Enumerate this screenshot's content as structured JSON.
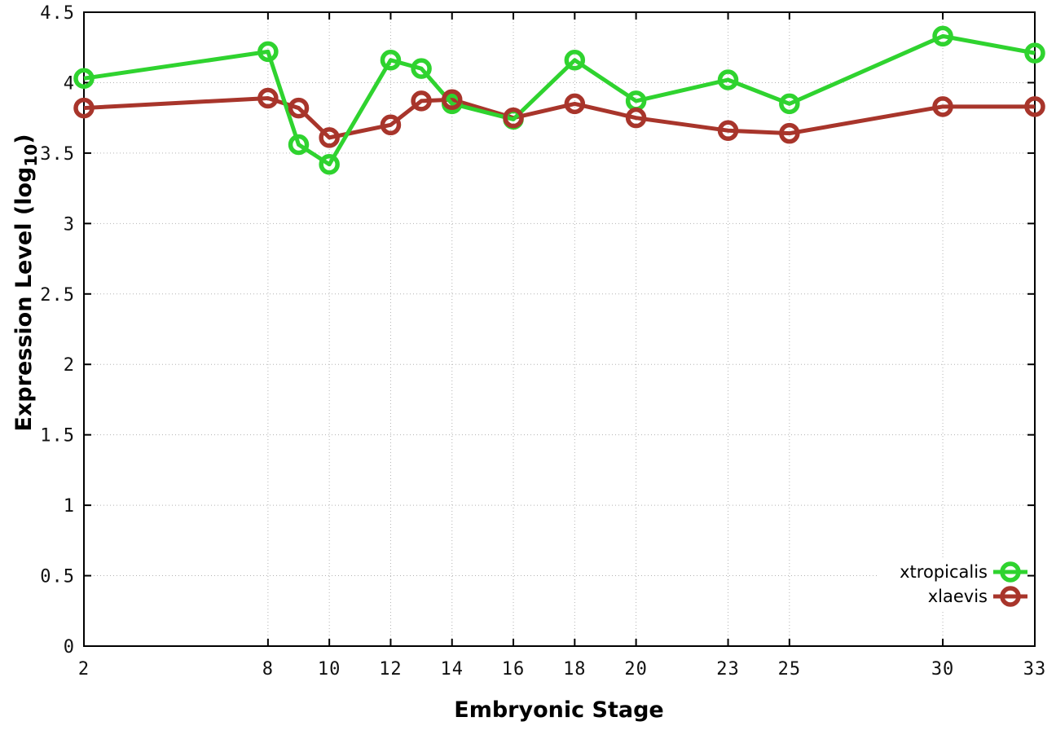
{
  "figure": {
    "background": "#ffffff",
    "grid_color": "#b3b3b3",
    "border_color": "#000000"
  },
  "chart_data": {
    "type": "line",
    "title": "",
    "xlabel": "Embryonic Stage",
    "ylabel": "Expression Level (log10)",
    "ylabel_parts": {
      "prefix": "Expression Level (log",
      "sub": "10",
      "suffix": ")"
    },
    "xlim": [
      2,
      33
    ],
    "ylim": [
      0,
      4.5
    ],
    "x_ticks": [
      2,
      8,
      10,
      12,
      14,
      16,
      18,
      20,
      23,
      25,
      30,
      33
    ],
    "y_ticks": [
      0,
      0.5,
      1,
      1.5,
      2,
      2.5,
      3,
      3.5,
      4,
      4.5
    ],
    "grid": true,
    "legend_position": "bottom-right",
    "marker": "open-circle",
    "x": [
      2,
      8,
      9,
      10,
      12,
      13,
      14,
      16,
      18,
      20,
      23,
      25,
      30,
      33
    ],
    "series": [
      {
        "name": "xtropicalis",
        "color": "#2fd32f",
        "values": [
          4.03,
          4.22,
          3.56,
          3.42,
          4.16,
          4.1,
          3.85,
          3.74,
          4.16,
          3.87,
          4.02,
          3.85,
          4.33,
          4.21
        ]
      },
      {
        "name": "xlaevis",
        "color": "#a8352b",
        "values": [
          3.82,
          3.89,
          3.82,
          3.61,
          3.7,
          3.87,
          3.88,
          3.75,
          3.85,
          3.75,
          3.66,
          3.64,
          3.83,
          3.83
        ]
      }
    ]
  }
}
